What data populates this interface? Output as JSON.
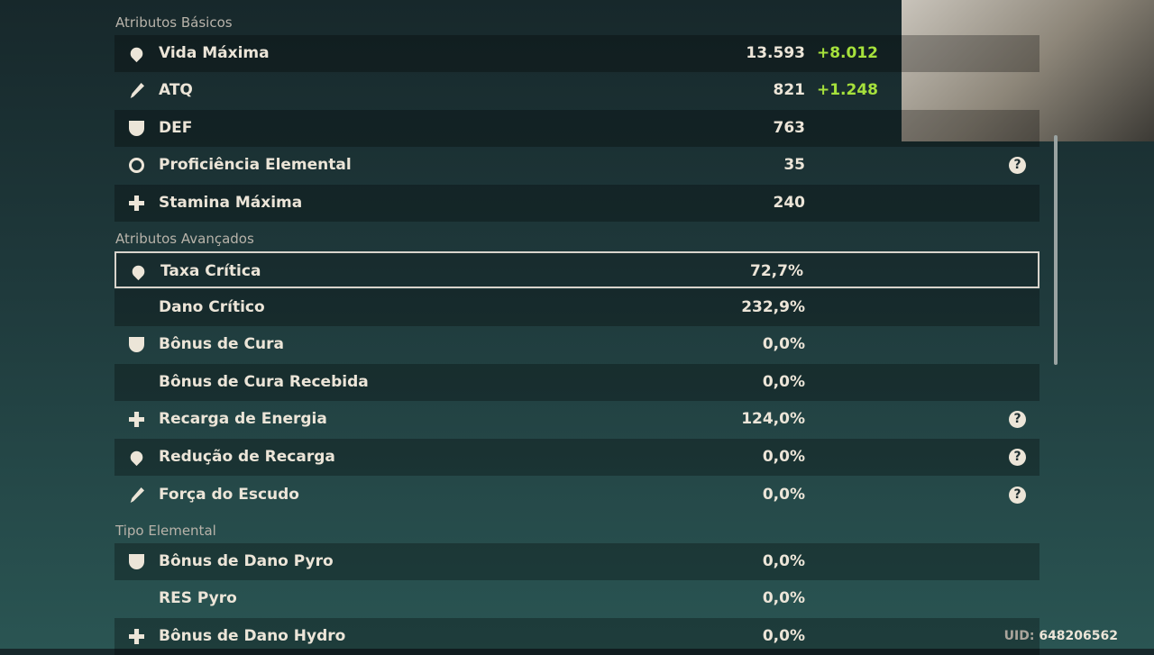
{
  "sections": [
    {
      "title": "Atributos Básicos",
      "rows": [
        {
          "label": "Vida Máxima",
          "value": "13.593",
          "bonus": "+8.012"
        },
        {
          "label": "ATQ",
          "value": "821",
          "bonus": "+1.248"
        },
        {
          "label": "DEF",
          "value": "763"
        },
        {
          "label": "Proficiência Elemental",
          "value": "35",
          "help": "?"
        },
        {
          "label": "Stamina Máxima",
          "value": "240"
        }
      ]
    },
    {
      "title": "Atributos Avançados",
      "rows": [
        {
          "label": "Taxa Crítica",
          "value": "72,7%"
        },
        {
          "label": "Dano Crítico",
          "value": "232,9%"
        },
        {
          "label": "Bônus de Cura",
          "value": "0,0%"
        },
        {
          "label": "Bônus de Cura Recebida",
          "value": "0,0%"
        },
        {
          "label": "Recarga de Energia",
          "value": "124,0%",
          "help": "?"
        },
        {
          "label": "Redução de Recarga",
          "value": "0,0%",
          "help": "?"
        },
        {
          "label": "Força do Escudo",
          "value": "0,0%",
          "help": "?"
        }
      ]
    },
    {
      "title": "Tipo Elemental",
      "rows": [
        {
          "label": "Bônus de Dano Pyro",
          "value": "0,0%"
        },
        {
          "label": "RES Pyro",
          "value": "0,0%"
        },
        {
          "label": "Bônus de Dano Hydro",
          "value": "0,0%"
        }
      ]
    }
  ],
  "uid": "UID: 648206562"
}
